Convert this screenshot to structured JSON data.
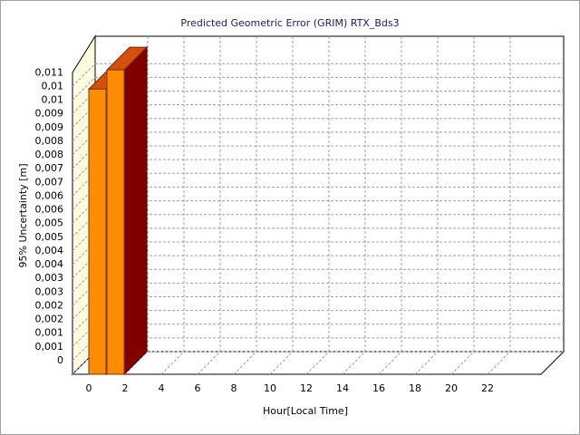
{
  "chart_data": {
    "type": "bar3d",
    "title": "Predicted Geometric Error (GRIM) RTX_Bds3",
    "x_label": "Hour[Local Time]",
    "y_label": "95% Uncertainty [m]",
    "categories": [
      "0",
      null,
      "2",
      null,
      "4",
      null,
      "6",
      null,
      "8",
      null,
      "10",
      null,
      "12",
      null,
      "14",
      null,
      "16",
      null,
      "18",
      null,
      "20",
      null,
      "22",
      null
    ],
    "values": [
      0.0104,
      0.0111,
      null,
      null,
      null,
      null,
      null,
      null,
      null,
      null,
      null,
      null,
      null,
      null,
      null,
      null,
      null,
      null,
      null,
      null,
      null,
      null,
      null,
      null
    ],
    "color": "#ff8c00",
    "ylim": [
      0,
      0.0115
    ],
    "yticks": [
      0,
      {
        "value": 0.0005,
        "label": "0,001"
      },
      {
        "value": 0.001,
        "label": "0,001"
      },
      {
        "value": 0.0015,
        "label": "0,002"
      },
      {
        "value": 0.002,
        "label": "0,002"
      },
      {
        "value": 0.0025,
        "label": "0,003"
      },
      {
        "value": 0.003,
        "label": "0,003"
      },
      {
        "value": 0.0035,
        "label": "0,004"
      },
      {
        "value": 0.004,
        "label": "0,004"
      },
      {
        "value": 0.0045,
        "label": "0,005"
      },
      {
        "value": 0.005,
        "label": "0,005"
      },
      {
        "value": 0.0055,
        "label": "0,006"
      },
      {
        "value": 0.006,
        "label": "0,006"
      },
      {
        "value": 0.0065,
        "label": "0,007"
      },
      {
        "value": 0.007,
        "label": "0,007"
      },
      {
        "value": 0.0075,
        "label": "0,008"
      },
      {
        "value": 0.008,
        "label": "0,008"
      },
      {
        "value": 0.0085,
        "label": "0,009"
      },
      {
        "value": 0.009,
        "label": "0,009"
      },
      {
        "value": 0.0095,
        "label": "0,01"
      },
      {
        "value": 0.01,
        "label": "0,01"
      },
      {
        "value": 0.0105,
        "label": "0,011"
      }
    ],
    "grid": true
  }
}
